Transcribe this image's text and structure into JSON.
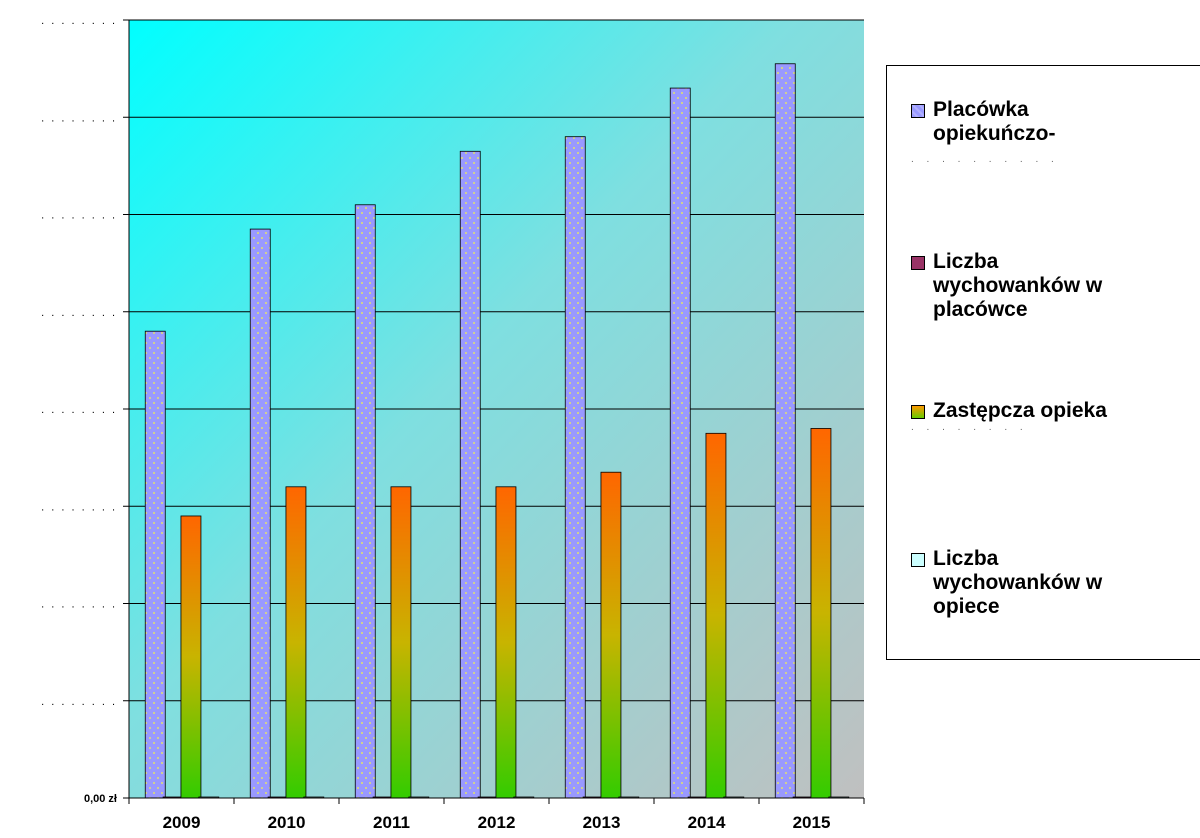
{
  "chart_data": {
    "type": "bar",
    "categories": [
      "2009",
      "2010",
      "2011",
      "2012",
      "2013",
      "2014",
      "2015"
    ],
    "series": [
      {
        "name": "Placówka opiekuńczo-",
        "values": [
          4.8,
          5.85,
          6.1,
          6.65,
          6.8,
          7.3,
          7.55
        ],
        "color": "#9999ff"
      },
      {
        "name": "Liczba wychowanków w placówce",
        "values": [
          0,
          0,
          0,
          0,
          0,
          0,
          0
        ],
        "color": "#993366"
      },
      {
        "name": "Zastępcza opieka",
        "values": [
          2.9,
          3.2,
          3.2,
          3.2,
          3.35,
          3.75,
          3.8
        ],
        "color": "#c6a000"
      },
      {
        "name": "Liczba wychowanków w opiece",
        "values": [
          0,
          0,
          0,
          0,
          0,
          0,
          0
        ],
        "color": "#ccffff"
      }
    ],
    "ylim": [
      0,
      8
    ],
    "y_tick_labels": [
      "0,00 zł",
      ". . . . . . . .",
      ". . . . . . . .",
      ". . . . . . . .",
      ". . . . . . . .",
      ". . . . . . . .",
      ". . . . . . . .",
      ". . . . . . . .",
      ". . . . . . . ."
    ],
    "grid": true,
    "legend_position": "right",
    "plot_background": "gradient cyan to gray"
  },
  "legend": {
    "items": [
      {
        "label": "Placówka\nopiekuńczo-",
        "color": "#9999ff",
        "dots": ". . . . . . . . . ."
      },
      {
        "label": "Liczba\nwychowanków w\nplacówce",
        "color": "#993366",
        "dots": ""
      },
      {
        "label": "Zastępcza opieka",
        "color": "#c8c800",
        "dots": ". . . . . . . ."
      },
      {
        "label": "Liczba\nwychowanków w\nopiece",
        "color": "#ccffff",
        "dots": ""
      }
    ]
  }
}
